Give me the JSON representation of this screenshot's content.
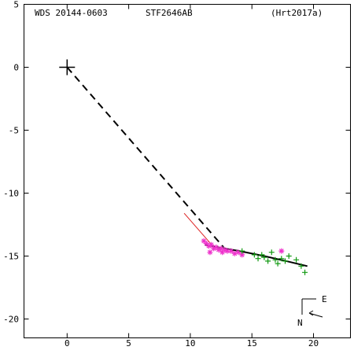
{
  "header": {
    "left": "WDS 20144-0603",
    "center": "STF2646AB",
    "right": "(Hrt2017a)"
  },
  "compass": {
    "east": "E",
    "north": "N"
  },
  "chart_data": {
    "type": "scatter",
    "xlim": [
      -3.5,
      23
    ],
    "ylim": [
      -21.5,
      5
    ],
    "x_ticks": [
      0,
      5,
      10,
      15,
      20
    ],
    "x_tick_labels": [
      "0",
      "5",
      "10",
      "15",
      "20"
    ],
    "y_ticks": [
      5,
      0,
      -5,
      -10,
      -15,
      -20
    ],
    "y_tick_labels": [
      "5",
      "0",
      "-5",
      "-10",
      "-15",
      "-20"
    ],
    "primary": [
      0,
      0
    ],
    "dashed_line": [
      [
        0,
        0
      ],
      [
        12.7,
        -14.3
      ]
    ],
    "fitted_orbit": [
      [
        11.2,
        -14.1
      ],
      [
        12.5,
        -14.35
      ],
      [
        14.0,
        -14.6
      ],
      [
        16.0,
        -15.0
      ],
      [
        18.0,
        -15.45
      ],
      [
        19.5,
        -15.8
      ]
    ],
    "red_line": [
      [
        9.5,
        -11.6
      ],
      [
        12.0,
        -14.4
      ]
    ],
    "series": [
      {
        "marker": "asterisk",
        "color": "#ee33cc",
        "points": [
          [
            11.1,
            -13.8
          ],
          [
            11.3,
            -14.0
          ],
          [
            11.5,
            -14.2
          ],
          [
            11.7,
            -14.1
          ],
          [
            11.9,
            -14.4
          ],
          [
            12.1,
            -14.3
          ],
          [
            12.3,
            -14.5
          ],
          [
            12.5,
            -14.4
          ],
          [
            12.6,
            -14.7
          ],
          [
            12.8,
            -14.5
          ],
          [
            13.0,
            -14.6
          ],
          [
            13.3,
            -14.6
          ],
          [
            13.6,
            -14.8
          ],
          [
            13.9,
            -14.7
          ],
          [
            14.2,
            -14.9
          ],
          [
            11.6,
            -14.7
          ],
          [
            17.4,
            -14.6
          ]
        ]
      },
      {
        "marker": "plus",
        "color": "#119911",
        "points": [
          [
            14.2,
            -14.6
          ],
          [
            15.2,
            -14.9
          ],
          [
            15.5,
            -15.2
          ],
          [
            15.8,
            -14.9
          ],
          [
            16.0,
            -15.1
          ],
          [
            16.3,
            -15.4
          ],
          [
            16.6,
            -14.7
          ],
          [
            16.9,
            -15.3
          ],
          [
            17.1,
            -15.6
          ],
          [
            17.4,
            -15.2
          ],
          [
            17.7,
            -15.4
          ],
          [
            18.0,
            -15.0
          ],
          [
            18.6,
            -15.3
          ],
          [
            19.0,
            -15.8
          ],
          [
            19.3,
            -16.3
          ]
        ]
      }
    ]
  }
}
